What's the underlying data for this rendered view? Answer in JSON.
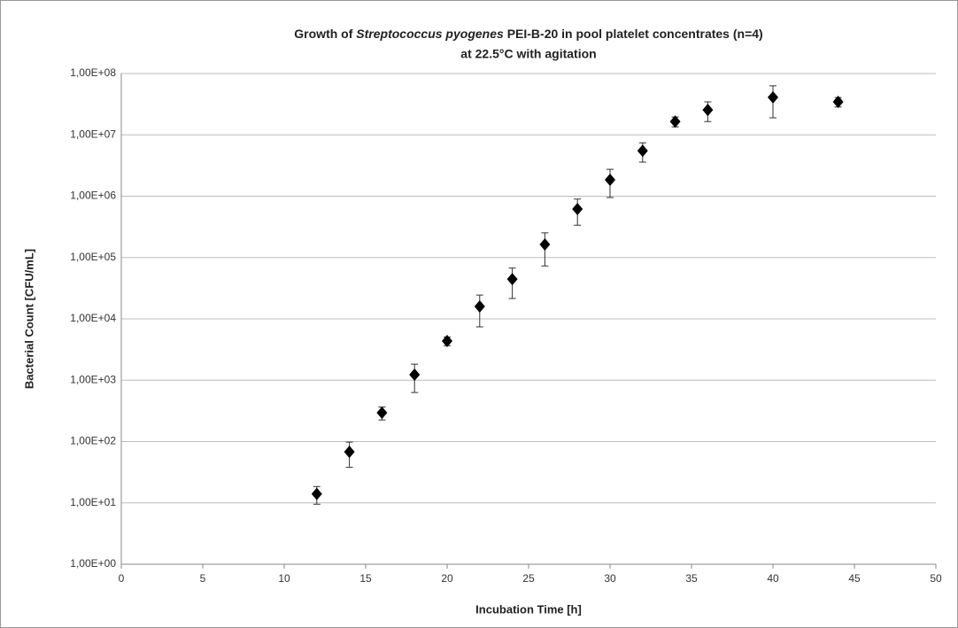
{
  "chart_data": {
    "type": "scatter",
    "title": [
      "Growth of",
      "Streptococcus pyogenes",
      "PEI-B-20 in pool platelet concentrates (n=4)",
      "at 22.5°C with agitation"
    ],
    "x_label": "Incubation Time [h]",
    "y_label": "Bacterial Count [CFU/mL]",
    "x": [
      12,
      14,
      16,
      18,
      20,
      22,
      24,
      26,
      28,
      30,
      32,
      34,
      36,
      40,
      44
    ],
    "series": [
      {
        "color": "#000000",
        "values": [
          14,
          68,
          295,
          1230,
          4360,
          15900,
          44500,
          163000,
          617000,
          1850000,
          5500000,
          16500000,
          25500000,
          41000000,
          34500000
        ],
        "errors": [
          4.5,
          30,
          70,
          600,
          700,
          8500,
          23000,
          90000,
          280000,
          900000,
          1900000,
          3000000,
          9000000,
          22000000,
          6000000
        ]
      }
    ],
    "xlim": [
      0,
      50
    ],
    "xticks": [
      0,
      5,
      10,
      15,
      20,
      25,
      30,
      35,
      40,
      45,
      50
    ],
    "ylim": [
      1,
      100000000
    ],
    "y_scale": "log",
    "yticks": [
      {
        "value": 1,
        "label": "1,00E+00"
      },
      {
        "value": 10,
        "label": "1,00E+01"
      },
      {
        "value": 100,
        "label": "1,00E+02"
      },
      {
        "value": 1000,
        "label": "1,00E+03"
      },
      {
        "value": 10000,
        "label": "1,00E+04"
      },
      {
        "value": 100000,
        "label": "1,00E+05"
      },
      {
        "value": 1000000,
        "label": "1,00E+06"
      },
      {
        "value": 10000000,
        "label": "1,00E+07"
      },
      {
        "value": 100000000,
        "label": "1,00E+08"
      }
    ],
    "grid": true
  }
}
